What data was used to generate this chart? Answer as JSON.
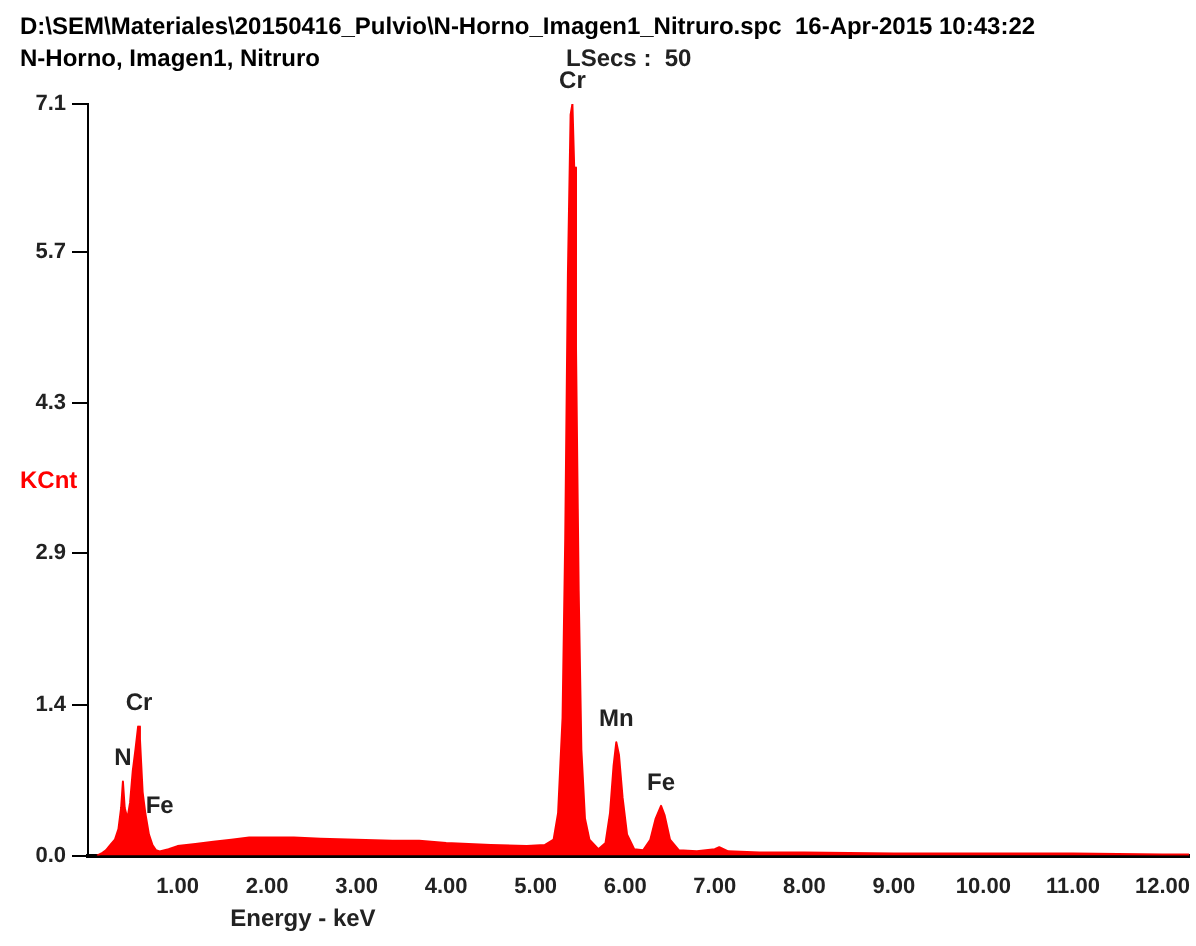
{
  "chart_data": {
    "type": "area",
    "title": "D:\\SEM\\Materiales\\20150416_Pulvio\\N-Horno_Imagen1_Nitruro.spc  16-Apr-2015 10:43:22",
    "subtitle": "N-Horno, Imagen1, Nitruro",
    "xlabel": "Energy - keV",
    "ylabel": "KCnt",
    "annotations": [
      "LSecs :  50",
      {
        "text": "Cr",
        "x": 5.41,
        "y": 7.1
      },
      {
        "text": "Mn",
        "x": 5.9,
        "y": 1.07
      },
      {
        "text": "Fe",
        "x": 6.4,
        "y": 0.47
      },
      {
        "text": "Cr",
        "x": 0.57,
        "y": 1.22
      },
      {
        "text": "N",
        "x": 0.39,
        "y": 0.7
      },
      {
        "text": "Fe",
        "x": 0.8,
        "y": 0.25
      }
    ],
    "x": [
      0.1,
      0.15,
      0.2,
      0.25,
      0.3,
      0.34,
      0.37,
      0.39,
      0.41,
      0.44,
      0.47,
      0.5,
      0.53,
      0.56,
      0.58,
      0.61,
      0.64,
      0.68,
      0.72,
      0.76,
      0.8,
      0.9,
      1.0,
      1.2,
      1.4,
      1.6,
      1.8,
      2.0,
      2.3,
      2.6,
      3.0,
      3.4,
      3.7,
      4.0,
      4.5,
      4.9,
      5.1,
      5.2,
      5.25,
      5.3,
      5.33,
      5.36,
      5.39,
      5.41,
      5.43,
      5.45,
      5.48,
      5.51,
      5.55,
      5.6,
      5.7,
      5.78,
      5.83,
      5.87,
      5.9,
      5.93,
      5.97,
      6.02,
      6.1,
      6.2,
      6.28,
      6.34,
      6.4,
      6.44,
      6.5,
      6.6,
      6.8,
      7.0,
      7.05,
      7.15,
      7.5,
      8.0,
      9.0,
      10.0,
      11.0,
      12.0,
      12.3
    ],
    "series": [
      {
        "color": "#ff0000",
        "values": [
          0,
          0.02,
          0.05,
          0.1,
          0.15,
          0.25,
          0.45,
          0.7,
          0.45,
          0.35,
          0.5,
          0.8,
          1.0,
          1.22,
          1.1,
          0.6,
          0.4,
          0.2,
          0.1,
          0.05,
          0.04,
          0.06,
          0.09,
          0.11,
          0.13,
          0.15,
          0.17,
          0.17,
          0.17,
          0.16,
          0.15,
          0.14,
          0.14,
          0.12,
          0.1,
          0.09,
          0.1,
          0.15,
          0.4,
          1.3,
          3.0,
          5.5,
          7.0,
          7.1,
          6.5,
          4.8,
          2.5,
          1.0,
          0.35,
          0.15,
          0.06,
          0.12,
          0.4,
          0.85,
          1.07,
          0.95,
          0.55,
          0.2,
          0.06,
          0.05,
          0.15,
          0.35,
          0.47,
          0.38,
          0.15,
          0.05,
          0.04,
          0.06,
          0.08,
          0.04,
          0.03,
          0.03,
          0.02,
          0.02,
          0.02,
          0.01,
          0.01
        ]
      }
    ],
    "xlim": [
      0,
      12.3
    ],
    "xticks": [
      {
        "value": 1,
        "label": "1.00"
      },
      {
        "value": 2,
        "label": "2.00"
      },
      {
        "value": 3,
        "label": "3.00"
      },
      {
        "value": 4,
        "label": "4.00"
      },
      {
        "value": 5,
        "label": "5.00"
      },
      {
        "value": 6,
        "label": "6.00"
      },
      {
        "value": 7,
        "label": "7.00"
      },
      {
        "value": 8,
        "label": "8.00"
      },
      {
        "value": 9,
        "label": "9.00"
      },
      {
        "value": 10,
        "label": "10.00"
      },
      {
        "value": 11,
        "label": "11.00"
      },
      {
        "value": 12,
        "label": "12.00"
      }
    ],
    "ylim": [
      0,
      7.1
    ],
    "yticks": [
      {
        "value": 0,
        "label": "0.0"
      },
      {
        "value": 1.42,
        "label": "1.4"
      },
      {
        "value": 2.86,
        "label": "2.9"
      },
      {
        "value": 4.28,
        "label": "4.3"
      },
      5.7,
      7.1
    ],
    "grid": false,
    "legend": false,
    "marker": "none"
  }
}
